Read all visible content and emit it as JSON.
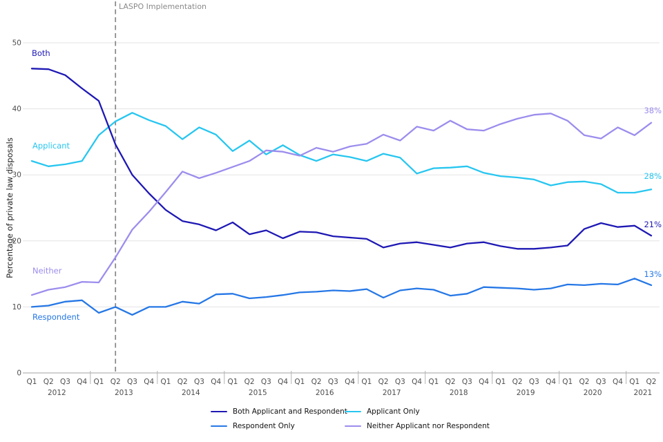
{
  "annotation": {
    "label": "LASPO Implementation"
  },
  "axes": {
    "y_title": "Percentage of private law disposals",
    "y_ticks": [
      0,
      10,
      20,
      30,
      40,
      50
    ],
    "quarter_names": [
      "Q1",
      "Q2",
      "Q3",
      "Q4"
    ]
  },
  "series_labels": {
    "both": "Both",
    "applicant": "Applicant",
    "neither": "Neither",
    "respondent": "Respondent"
  },
  "end_labels": {
    "neither": "38%",
    "applicant": "28%",
    "both": "21%",
    "respondent": "13%"
  },
  "colors": {
    "both": "#1e18b4",
    "applicant": "#27c6f0",
    "respondent": "#2577e6",
    "neither": "#9b8ded",
    "grid": "#e3e3e3",
    "axis": "#b3b3b3",
    "tick_text": "#4d4d4d",
    "annotation_line": "#868686"
  },
  "legend": [
    {
      "label": "Both Applicant and Respondent",
      "color": "#1e18b4"
    },
    {
      "label": "Applicant Only",
      "color": "#27c6f0"
    },
    {
      "label": "Respondent Only",
      "color": "#2577e6"
    },
    {
      "label": "Neither Applicant nor Respondent",
      "color": "#9b8ded"
    }
  ],
  "chart_data": {
    "type": "line",
    "title": "",
    "xlabel": "",
    "ylabel": "Percentage of private law disposals",
    "ylim": [
      0,
      55
    ],
    "grid": "horizontal gridlines at 10,20,30,40,50",
    "legend_position": "bottom",
    "x_years": [
      {
        "label": "2012",
        "quarters": 4
      },
      {
        "label": "2013",
        "quarters": 4
      },
      {
        "label": "2014",
        "quarters": 4
      },
      {
        "label": "2015",
        "quarters": 4
      },
      {
        "label": "2016",
        "quarters": 4
      },
      {
        "label": "2017",
        "quarters": 4
      },
      {
        "label": "2018",
        "quarters": 4
      },
      {
        "label": "2019",
        "quarters": 4
      },
      {
        "label": "2020",
        "quarters": 4
      },
      {
        "label": "2021",
        "quarters": 2
      }
    ],
    "annotation": {
      "label": "LASPO Implementation",
      "x_index": 5,
      "style": "vertical dashed line at 2013 Q2"
    },
    "series": [
      {
        "name": "Applicant Only",
        "color": "#27c6f0",
        "values": [
          32.1,
          31.3,
          31.6,
          32.1,
          36.0,
          38.1,
          39.4,
          38.3,
          37.4,
          35.4,
          37.2,
          36.1,
          33.6,
          35.2,
          33.1,
          34.5,
          33.0,
          32.1,
          33.1,
          32.7,
          32.1,
          33.2,
          32.6,
          30.2,
          31.0,
          31.1,
          31.3,
          30.3,
          29.8,
          29.6,
          29.3,
          28.4,
          28.9,
          29.0,
          28.6,
          27.3,
          27.3,
          27.8
        ]
      },
      {
        "name": "Respondent Only",
        "color": "#2577e6",
        "values": [
          10.0,
          10.2,
          10.8,
          11.0,
          9.1,
          10.0,
          8.8,
          10.0,
          10.0,
          10.8,
          10.5,
          11.9,
          12.0,
          11.3,
          11.5,
          11.8,
          12.2,
          12.3,
          12.5,
          12.4,
          12.7,
          11.4,
          12.5,
          12.8,
          12.6,
          11.7,
          12.0,
          13.0,
          12.9,
          12.8,
          12.6,
          12.8,
          13.4,
          13.3,
          13.5,
          13.4,
          14.3,
          13.3
        ]
      },
      {
        "name": "Both Applicant and Respondent",
        "color": "#1e18b4",
        "values": [
          46.1,
          46.0,
          45.1,
          43.1,
          41.2,
          34.6,
          30.0,
          27.2,
          24.7,
          23.0,
          22.5,
          21.6,
          22.8,
          21.0,
          21.6,
          20.4,
          21.4,
          21.3,
          20.7,
          20.5,
          20.3,
          19.0,
          19.6,
          19.8,
          19.4,
          19.0,
          19.6,
          19.8,
          19.2,
          18.8,
          18.8,
          19.0,
          19.3,
          21.8,
          22.7,
          22.1,
          22.3,
          20.8
        ]
      },
      {
        "name": "Neither Applicant nor Respondent",
        "color": "#9b8ded",
        "values": [
          11.8,
          12.6,
          13.0,
          13.8,
          13.7,
          17.5,
          21.7,
          24.4,
          27.4,
          30.5,
          29.5,
          30.3,
          31.2,
          32.1,
          33.7,
          33.5,
          32.9,
          34.1,
          33.5,
          34.3,
          34.7,
          36.1,
          35.2,
          37.3,
          36.7,
          38.2,
          36.9,
          36.7,
          37.7,
          38.5,
          39.1,
          39.3,
          38.2,
          36.0,
          35.5,
          37.2,
          36.0,
          37.9
        ]
      }
    ]
  }
}
